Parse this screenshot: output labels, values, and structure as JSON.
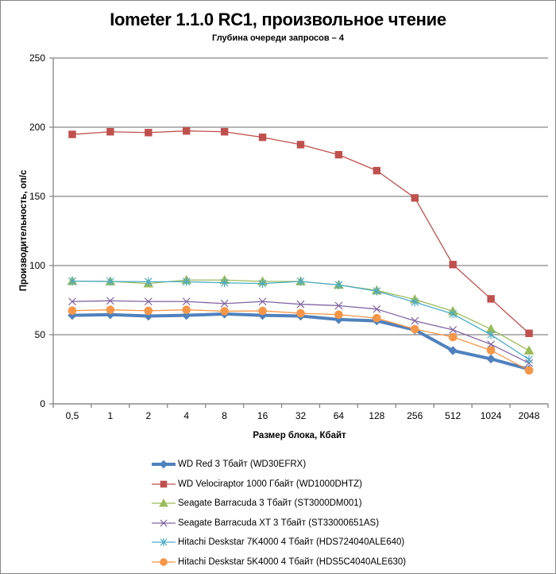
{
  "chart_data": {
    "type": "line",
    "title": "Iometer 1.1.0 RC1, произвольное чтение",
    "subtitle": "Глубина очереди запросов – 4",
    "xlabel": "Размер блока, Кбайт",
    "ylabel": "Производительность, оп/с",
    "ylim": [
      0,
      250
    ],
    "yticks": [
      0,
      50,
      100,
      150,
      200,
      250
    ],
    "grid": true,
    "legend_position": "bottom",
    "categories": [
      "0,5",
      "1",
      "2",
      "4",
      "8",
      "16",
      "32",
      "64",
      "128",
      "256",
      "512",
      "1024",
      "2048"
    ],
    "series": [
      {
        "name": "WD Red 3 Тбайт (WD30EFRX)",
        "color": "#4F81BD",
        "marker": "diamond",
        "line_width": "thick",
        "values": [
          64,
          64.5,
          63.5,
          64,
          65,
          64,
          63.5,
          61,
          60,
          53.5,
          38.5,
          32.5,
          25
        ]
      },
      {
        "name": "WD Velociraptor 1000 Гбайт (WD1000DHTZ)",
        "color": "#C0504D",
        "marker": "square",
        "line_width": "thin",
        "values": [
          194.8,
          196.7,
          196.1,
          197.3,
          196.7,
          192.7,
          187.4,
          180.1,
          168.6,
          148.9,
          100.7,
          75.9,
          51
        ]
      },
      {
        "name": "Seagate Barracuda 3 Тбайт (ST3000DM001)",
        "color": "#9BBB59",
        "marker": "triangle",
        "line_width": "thin",
        "values": [
          88.7,
          88.5,
          87,
          89.5,
          89.5,
          88.5,
          88.5,
          86,
          82,
          75.5,
          67,
          54,
          38.5
        ]
      },
      {
        "name": "Seagate Barracuda XT 3 Тбайт (ST33000651AS)",
        "color": "#8064A2",
        "marker": "x",
        "line_width": "thin",
        "values": [
          74,
          74.5,
          74,
          74,
          72.5,
          74,
          72,
          71,
          68.5,
          60,
          53.5,
          43,
          29.5
        ]
      },
      {
        "name": "Hitachi Deskstar 7K4000 4 Тбайт (HDS724040ALE640)",
        "color": "#4BACC6",
        "marker": "star",
        "line_width": "thin",
        "values": [
          88.7,
          88.5,
          88.3,
          88.3,
          87.5,
          87,
          88.5,
          86,
          81.5,
          73.5,
          65,
          50,
          32
        ]
      },
      {
        "name": "Hitachi Deskstar 5K4000 4 Тбайт (HDS5C4040ALE630)",
        "color": "#F79646",
        "marker": "circle",
        "line_width": "thin",
        "values": [
          67.4,
          68,
          67.3,
          68,
          67,
          67.2,
          65.5,
          64.5,
          62,
          54,
          48.3,
          38.7,
          24.2
        ]
      }
    ]
  }
}
